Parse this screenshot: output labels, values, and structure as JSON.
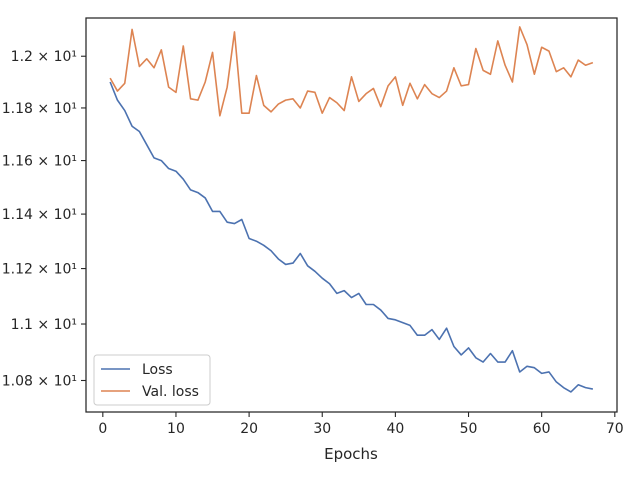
{
  "chart_data": {
    "type": "line",
    "title": "",
    "xlabel": "Epochs",
    "ylabel": "",
    "xlim": [
      -2.3,
      70.3
    ],
    "ylim": [
      10.69,
      12.15
    ],
    "y_scale": "log",
    "grid": false,
    "legend_position": "lower-left",
    "x_ticks": [
      {
        "value": 0,
        "label": "0"
      },
      {
        "value": 10,
        "label": "10"
      },
      {
        "value": 20,
        "label": "20"
      },
      {
        "value": 30,
        "label": "30"
      },
      {
        "value": 40,
        "label": "40"
      },
      {
        "value": 50,
        "label": "50"
      },
      {
        "value": 60,
        "label": "60"
      },
      {
        "value": 70,
        "label": "70"
      }
    ],
    "y_ticks": [
      {
        "value": 10.8,
        "label": "1.08 × 10¹"
      },
      {
        "value": 11.0,
        "label": "1.1 × 10¹"
      },
      {
        "value": 11.2,
        "label": "1.12 × 10¹"
      },
      {
        "value": 11.4,
        "label": "1.14 × 10¹"
      },
      {
        "value": 11.6,
        "label": "1.16 × 10¹"
      },
      {
        "value": 11.8,
        "label": "1.18 × 10¹"
      },
      {
        "value": 12.0,
        "label": "1.2 × 10¹"
      }
    ],
    "x": [
      1,
      2,
      3,
      4,
      5,
      6,
      7,
      8,
      9,
      10,
      11,
      12,
      13,
      14,
      15,
      16,
      17,
      18,
      19,
      20,
      21,
      22,
      23,
      24,
      25,
      26,
      27,
      28,
      29,
      30,
      31,
      32,
      33,
      34,
      35,
      36,
      37,
      38,
      39,
      40,
      41,
      42,
      43,
      44,
      45,
      46,
      47,
      48,
      49,
      50,
      51,
      52,
      53,
      54,
      55,
      56,
      57,
      58,
      59,
      60,
      61,
      62,
      63,
      64,
      65,
      66,
      67
    ],
    "series": [
      {
        "name": "Loss",
        "color": "#4c72b0",
        "values": [
          11.9,
          11.83,
          11.79,
          11.73,
          11.71,
          11.66,
          11.61,
          11.6,
          11.57,
          11.56,
          11.53,
          11.49,
          11.48,
          11.46,
          11.41,
          11.41,
          11.37,
          11.365,
          11.38,
          11.31,
          11.3,
          11.285,
          11.265,
          11.235,
          11.215,
          11.22,
          11.255,
          11.21,
          11.19,
          11.165,
          11.145,
          11.11,
          11.12,
          11.095,
          11.11,
          11.07,
          11.07,
          11.05,
          11.02,
          11.015,
          11.005,
          10.995,
          10.96,
          10.96,
          10.98,
          10.945,
          10.985,
          10.92,
          10.89,
          10.915,
          10.88,
          10.865,
          10.895,
          10.865,
          10.865,
          10.905,
          10.83,
          10.85,
          10.845,
          10.825,
          10.83,
          10.795,
          10.775,
          10.76,
          10.785,
          10.775,
          10.77
        ]
      },
      {
        "name": "Val. loss",
        "color": "#dd8452",
        "values": [
          11.915,
          11.865,
          11.895,
          12.105,
          11.96,
          11.99,
          11.955,
          12.025,
          11.88,
          11.86,
          12.04,
          11.835,
          11.83,
          11.9,
          12.015,
          11.77,
          11.88,
          12.095,
          11.78,
          11.78,
          11.925,
          11.81,
          11.785,
          11.815,
          11.83,
          11.835,
          11.8,
          11.865,
          11.86,
          11.78,
          11.84,
          11.82,
          11.79,
          11.92,
          11.825,
          11.855,
          11.875,
          11.805,
          11.885,
          11.92,
          11.81,
          11.895,
          11.835,
          11.89,
          11.855,
          11.84,
          11.865,
          11.955,
          11.885,
          11.89,
          12.03,
          11.945,
          11.93,
          12.06,
          11.965,
          11.9,
          12.115,
          12.045,
          11.93,
          12.035,
          12.02,
          11.94,
          11.955,
          11.92,
          11.985,
          11.965,
          11.975
        ]
      }
    ]
  }
}
